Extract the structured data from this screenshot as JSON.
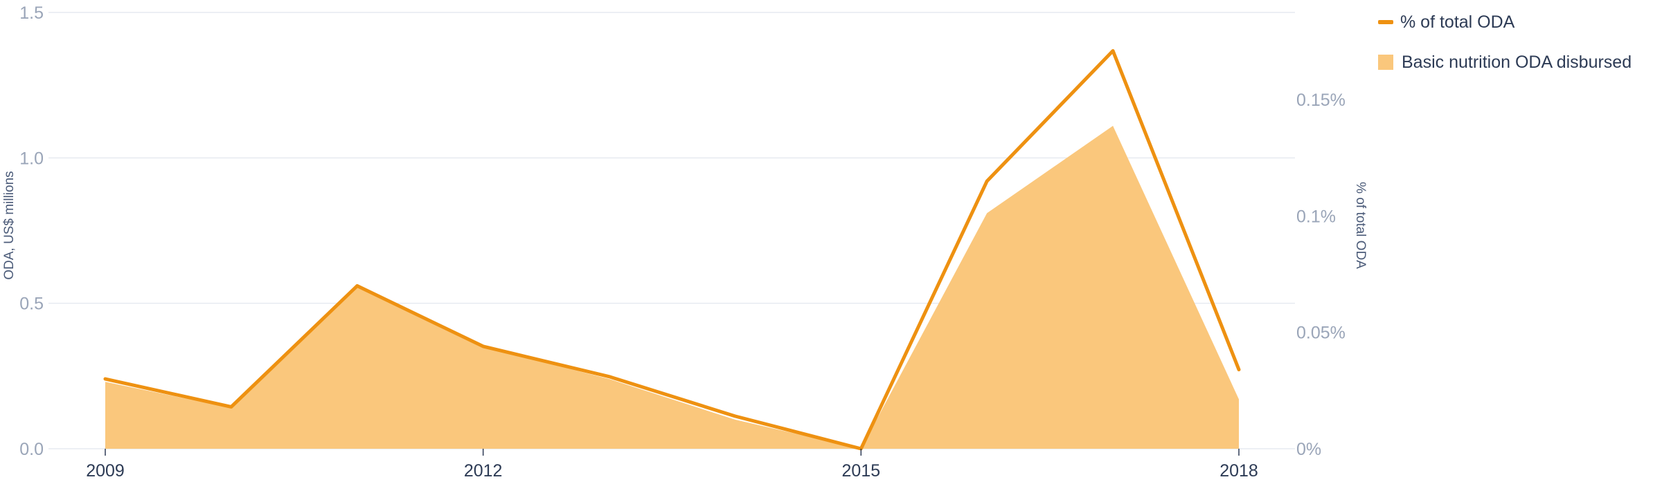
{
  "chart_data": {
    "type": "line",
    "x": [
      2009,
      2010,
      2011,
      2012,
      2013,
      2014,
      2015,
      2016,
      2017,
      2018
    ],
    "x_ticks": [
      "2009",
      "2012",
      "2015",
      "2018"
    ],
    "series": [
      {
        "name": "% of total ODA",
        "type": "line",
        "axis": "right",
        "color": "#ee9111",
        "values": [
          0.03,
          0.018,
          0.07,
          0.044,
          0.031,
          0.014,
          0.0,
          0.115,
          0.171,
          0.034
        ]
      },
      {
        "name": "Basic nutrition ODA disbursed",
        "type": "area",
        "axis": "left",
        "color": "#fac77c",
        "values": [
          0.23,
          0.14,
          0.56,
          0.35,
          0.24,
          0.1,
          0.0,
          0.81,
          1.11,
          0.17
        ]
      }
    ],
    "y_left": {
      "label": "ODA, US$ millions",
      "ylim": [
        0,
        1.5
      ],
      "ticks": [
        "0.0",
        "0.5",
        "1.0",
        "1.5"
      ]
    },
    "y_right": {
      "label": "% of total ODA",
      "ylim": [
        0,
        0.1875
      ],
      "ticks": [
        "0%",
        "0.05%",
        "0.1%",
        "0.15%"
      ]
    },
    "grid": true,
    "legend_placement": "top-right"
  }
}
